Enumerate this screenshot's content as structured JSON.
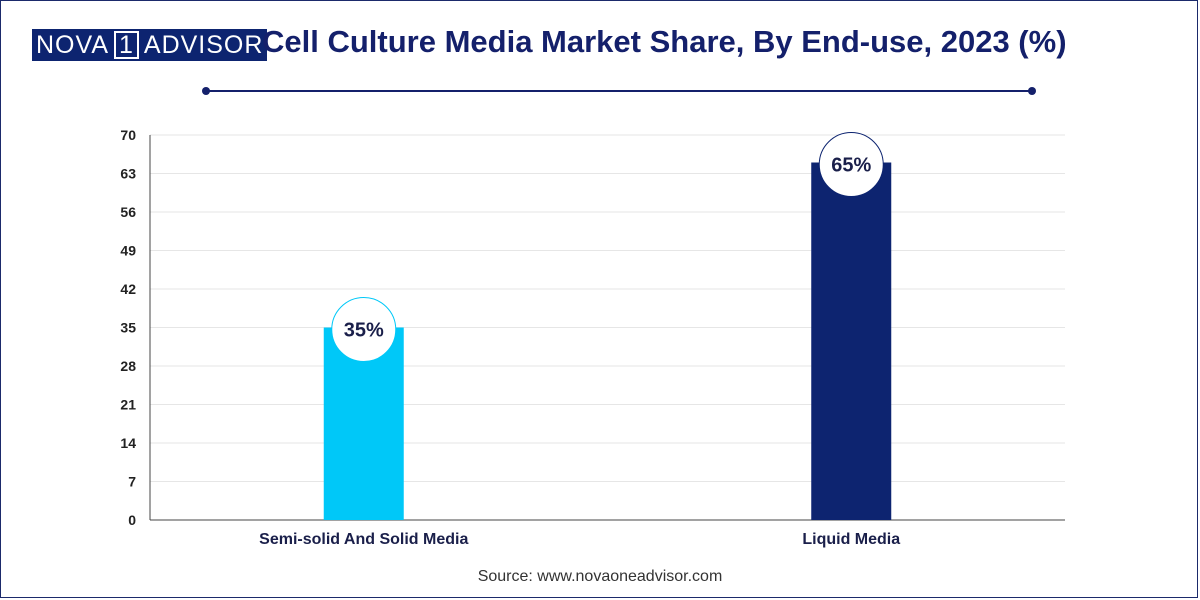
{
  "brand": {
    "logo_nova": "NOVA",
    "logo_one": "1",
    "logo_advisor": "ADVISOR"
  },
  "header": {
    "title": "Cell Culture Media Market Share, By End-use, 2023 (%)"
  },
  "footer": {
    "source": "Source: www.novaoneadvisor.com"
  },
  "colors": {
    "title": "#14206b",
    "semi_solid": "#00c8f8",
    "liquid": "#0d2470",
    "grid": "#e6e6e6"
  },
  "chart_data": {
    "type": "bar",
    "title": "Cell Culture Media Market Share, By End-use, 2023 (%)",
    "categories": [
      "Semi-solid And Solid Media",
      "Liquid Media"
    ],
    "values": [
      35,
      65
    ],
    "data_labels": [
      "35%",
      "65%"
    ],
    "bar_colors": [
      "#00c8f8",
      "#0d2470"
    ],
    "ylim": [
      0,
      70
    ],
    "yticks": [
      0,
      7,
      14,
      21,
      28,
      35,
      42,
      49,
      56,
      63,
      70
    ],
    "grid": true,
    "legend": "none"
  }
}
